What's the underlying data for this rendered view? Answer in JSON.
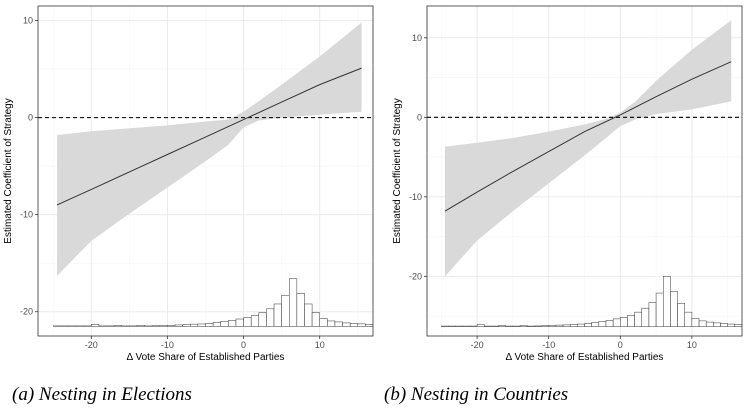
{
  "captions": [
    "(a) Nesting in Elections",
    "(b) Nesting in Countries"
  ],
  "colors": {
    "ribbon": "#d9d9d9",
    "line": "#333333",
    "grid_major": "#ebebeb",
    "grid_minor": "#f5f5f5",
    "reference_line": "#000000",
    "bar_fill": "#ffffff",
    "bar_stroke": "#333333"
  },
  "chart_data": [
    {
      "type": "line",
      "panel_caption": "(a) Nesting in Elections",
      "xlabel": "Δ Vote Share of Established Parties",
      "ylabel": "Estimated Coefficient of Strategy",
      "xlim": [
        -27,
        17
      ],
      "ylim": [
        -22.5,
        11.5
      ],
      "xticks": [
        -20,
        -10,
        0,
        10
      ],
      "xtick_labels": [
        "-20",
        "-10",
        "0",
        "10"
      ],
      "yticks": [
        -20,
        -10,
        0,
        10
      ],
      "ytick_labels": [
        "-20",
        "-10",
        "0",
        "10"
      ],
      "grid": true,
      "reference_hline": 0,
      "series": [
        {
          "role": "marginal effect",
          "x": [
            -24.5,
            -20,
            -15,
            -10,
            -5,
            0,
            5,
            10,
            15.5
          ],
          "y": [
            -9.0,
            -7.4,
            -5.6,
            -3.8,
            -2.0,
            -0.2,
            1.6,
            3.4,
            5.1
          ]
        }
      ],
      "ribbon": {
        "x": [
          -24.5,
          -20,
          -15,
          -10,
          -5,
          -2,
          0,
          2,
          5,
          10,
          15.5
        ],
        "lower": [
          -16.3,
          -12.7,
          -9.9,
          -7.2,
          -4.5,
          -2.8,
          -1.0,
          -0.3,
          0.0,
          0.3,
          0.6
        ],
        "upper": [
          -1.8,
          -1.4,
          -1.1,
          -0.8,
          -0.4,
          -0.2,
          0.6,
          1.7,
          3.4,
          6.3,
          9.8
        ]
      },
      "histogram": {
        "baseline": -21.5,
        "bin_width": 1,
        "bin_start": -25,
        "heights": [
          0.04,
          0.04,
          0.04,
          0.04,
          0.04,
          0.2,
          0.04,
          0.04,
          0.1,
          0.04,
          0.04,
          0.1,
          0.04,
          0.06,
          0.08,
          0.1,
          0.14,
          0.16,
          0.22,
          0.24,
          0.3,
          0.4,
          0.5,
          0.6,
          0.75,
          0.9,
          1.1,
          1.4,
          1.8,
          2.3,
          3.2,
          4.9,
          3.4,
          2.3,
          1.4,
          0.8,
          0.55,
          0.45,
          0.35,
          0.3,
          0.25,
          0.2,
          0.18
        ]
      }
    },
    {
      "type": "line",
      "panel_caption": "(b) Nesting in Countries",
      "xlabel": "Δ Vote Share of Established Parties",
      "ylabel": "Estimated Coefficient of Strategy",
      "xlim": [
        -27,
        17
      ],
      "ylim": [
        -27.5,
        14
      ],
      "xticks": [
        -20,
        -10,
        0,
        10
      ],
      "xtick_labels": [
        "-20",
        "-10",
        "0",
        "10"
      ],
      "yticks": [
        -20,
        -10,
        0,
        10
      ],
      "ytick_labels": [
        "-20",
        "-10",
        "0",
        "10"
      ],
      "grid": true,
      "reference_hline": 0,
      "series": [
        {
          "role": "marginal effect",
          "x": [
            -24.5,
            -20,
            -15,
            -10,
            -5,
            0,
            5,
            10,
            15.5
          ],
          "y": [
            -11.8,
            -9.4,
            -6.8,
            -4.3,
            -1.8,
            0.3,
            2.6,
            4.8,
            7.0
          ]
        }
      ],
      "ribbon": {
        "x": [
          -24.5,
          -20,
          -15,
          -10,
          -5,
          -2,
          0,
          2,
          5,
          10,
          15.5
        ],
        "lower": [
          -20.0,
          -15.5,
          -11.8,
          -8.3,
          -4.8,
          -2.6,
          -1.1,
          -0.3,
          0.4,
          1.0,
          2.0
        ],
        "upper": [
          -3.7,
          -3.2,
          -2.6,
          -1.8,
          -0.9,
          -0.2,
          0.6,
          1.9,
          4.6,
          8.5,
          12.2
        ]
      },
      "histogram": {
        "baseline": -26.3,
        "bin_width": 1,
        "bin_start": -25,
        "heights": [
          0.05,
          0.05,
          0.05,
          0.05,
          0.05,
          0.25,
          0.05,
          0.05,
          0.12,
          0.05,
          0.05,
          0.12,
          0.05,
          0.07,
          0.1,
          0.12,
          0.17,
          0.2,
          0.27,
          0.3,
          0.37,
          0.5,
          0.62,
          0.75,
          0.95,
          1.15,
          1.4,
          1.8,
          2.3,
          3.0,
          4.2,
          6.3,
          4.4,
          2.9,
          1.8,
          1.0,
          0.7,
          0.55,
          0.45,
          0.38,
          0.3,
          0.25,
          0.22
        ]
      }
    }
  ]
}
